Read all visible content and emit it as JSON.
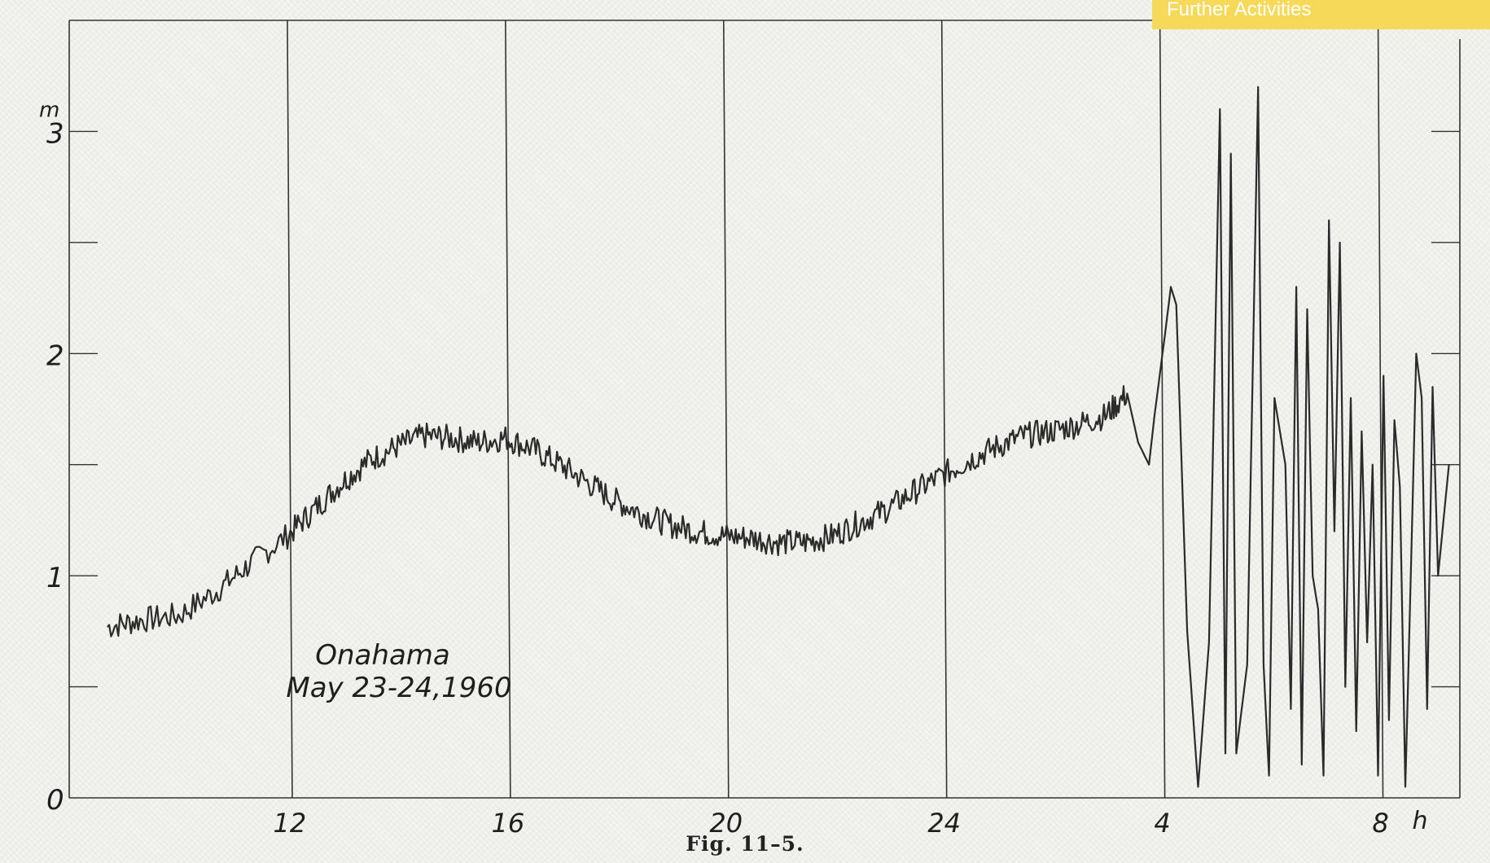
{
  "banner": {
    "label": "Further Activities"
  },
  "figure": {
    "caption": "Fig. 11–5."
  },
  "chart_data": {
    "type": "line",
    "title": "",
    "annotation": [
      "Onahama",
      "May 23-24,1960"
    ],
    "ylabel": "m",
    "xlabel": "h",
    "y_ticks": [
      "0",
      "1",
      "2",
      "3"
    ],
    "ylim": [
      0,
      3.5
    ],
    "x_ticks": [
      "12",
      "16",
      "20",
      "24",
      "4",
      "8"
    ],
    "x_tick_hours": [
      12,
      16,
      20,
      24,
      28,
      32
    ],
    "xlim": [
      8,
      33.5
    ],
    "grid": "vertical lines at labeled hours",
    "series": [
      {
        "x": [
          8.7,
          9.3,
          10,
          10.7,
          11.3,
          12,
          12.5,
          13,
          13.5,
          14,
          14.5,
          15,
          15.5,
          16,
          16.5,
          17,
          17.5,
          18,
          18.5,
          19,
          19.5,
          20,
          20.5,
          21,
          21.5,
          22,
          22.5,
          23,
          23.5,
          24,
          24.5,
          25,
          25.5,
          26,
          26.5,
          27,
          27.4,
          27.6,
          27.8,
          27.9,
          28.1,
          28.2,
          28.3,
          28.5,
          28.7,
          28.9,
          29.1,
          29.2,
          29.3,
          29.4,
          29.6,
          29.7,
          29.8,
          29.9,
          30.0,
          30.1,
          30.3,
          30.4,
          30.5,
          30.6,
          30.7,
          30.8,
          30.9,
          31.0,
          31.1,
          31.2,
          31.3,
          31.4,
          31.5,
          31.6,
          31.7,
          31.8,
          31.9,
          32.0,
          32.1,
          32.2,
          32.3,
          32.4,
          32.5,
          32.6,
          32.7,
          32.8,
          32.9,
          33.0,
          33.1,
          33.3
        ],
        "y": [
          0.77,
          0.8,
          0.82,
          0.93,
          1.05,
          1.18,
          1.3,
          1.42,
          1.52,
          1.58,
          1.63,
          1.62,
          1.6,
          1.62,
          1.57,
          1.5,
          1.42,
          1.34,
          1.28,
          1.23,
          1.2,
          1.18,
          1.17,
          1.15,
          1.15,
          1.18,
          1.24,
          1.3,
          1.38,
          1.45,
          1.52,
          1.58,
          1.63,
          1.65,
          1.68,
          1.72,
          1.82,
          1.6,
          1.5,
          1.72,
          2.1,
          2.3,
          2.22,
          0.75,
          0.05,
          0.7,
          3.1,
          0.2,
          2.9,
          0.2,
          0.6,
          1.9,
          3.2,
          0.6,
          0.1,
          1.8,
          1.5,
          0.4,
          2.3,
          0.15,
          2.2,
          1.0,
          0.85,
          0.1,
          2.6,
          1.2,
          2.5,
          0.5,
          1.8,
          0.3,
          1.65,
          0.7,
          1.5,
          0.1,
          1.9,
          0.35,
          1.7,
          1.4,
          0.05,
          1.0,
          2.0,
          1.8,
          0.4,
          1.85,
          1.0,
          1.5
        ]
      }
    ]
  }
}
